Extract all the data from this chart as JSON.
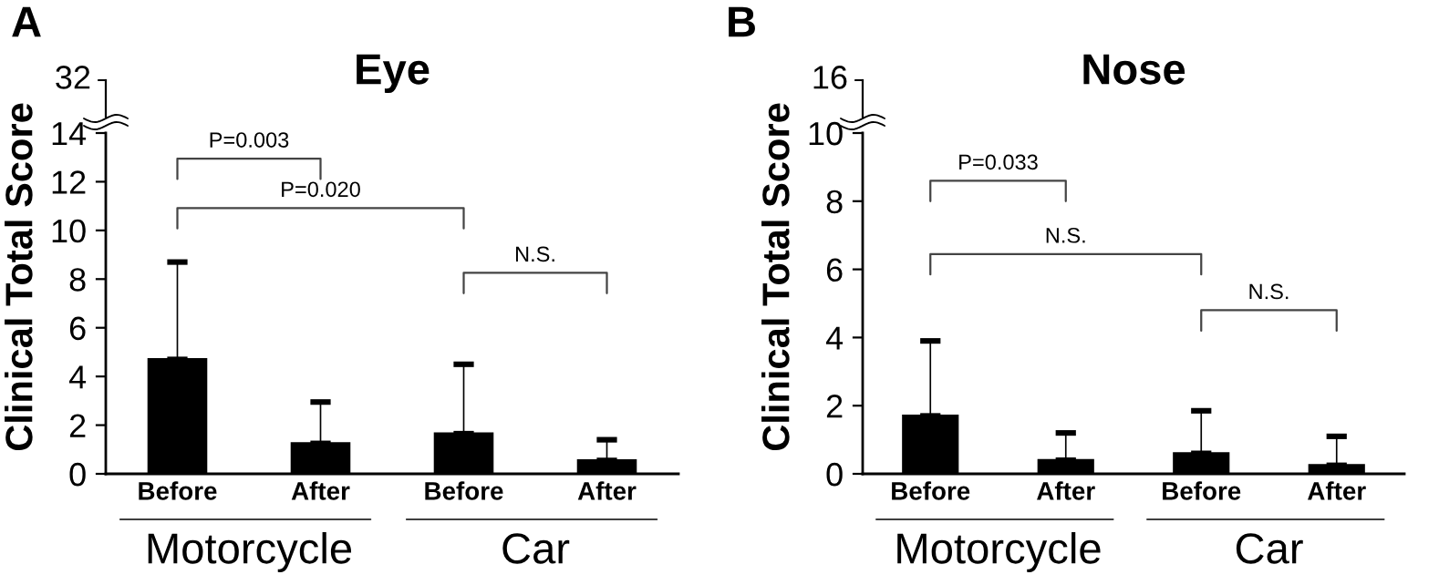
{
  "chart_data": [
    {
      "type": "bar",
      "title": "Eye",
      "ylabel": "Clinical Total Score",
      "categories": [
        "Before",
        "After",
        "Before",
        "After"
      ],
      "values": [
        4.7,
        1.25,
        1.65,
        0.55
      ],
      "errors": [
        [
          4.7,
          8.7
        ],
        [
          1.25,
          2.95
        ],
        [
          1.65,
          4.5
        ],
        [
          0.55,
          1.4
        ]
      ],
      "color": "#000000",
      "ylim": [
        0,
        14
      ],
      "yticks": [
        0,
        2,
        4,
        6,
        8,
        10,
        12,
        14
      ],
      "annotations": [
        "A",
        "32",
        "P=0.003",
        "P=0.020",
        "N.S.",
        "Motorcycle",
        "Car"
      ]
    },
    {
      "type": "bar",
      "title": "Nose",
      "ylabel": "Clinical Total Score",
      "categories": [
        "Before",
        "After",
        "Before",
        "After"
      ],
      "values": [
        1.7,
        0.4,
        0.6,
        0.25
      ],
      "errors": [
        [
          1.7,
          3.9
        ],
        [
          0.4,
          1.2
        ],
        [
          0.6,
          1.85
        ],
        [
          0.25,
          1.1
        ]
      ],
      "color": "#000000",
      "ylim": [
        0,
        10
      ],
      "yticks": [
        0,
        2,
        4,
        6,
        8,
        10
      ],
      "annotations": [
        "B",
        "16",
        "P=0.033",
        "N.S.",
        "N.S.",
        "Motorcycle",
        "Car"
      ]
    }
  ]
}
